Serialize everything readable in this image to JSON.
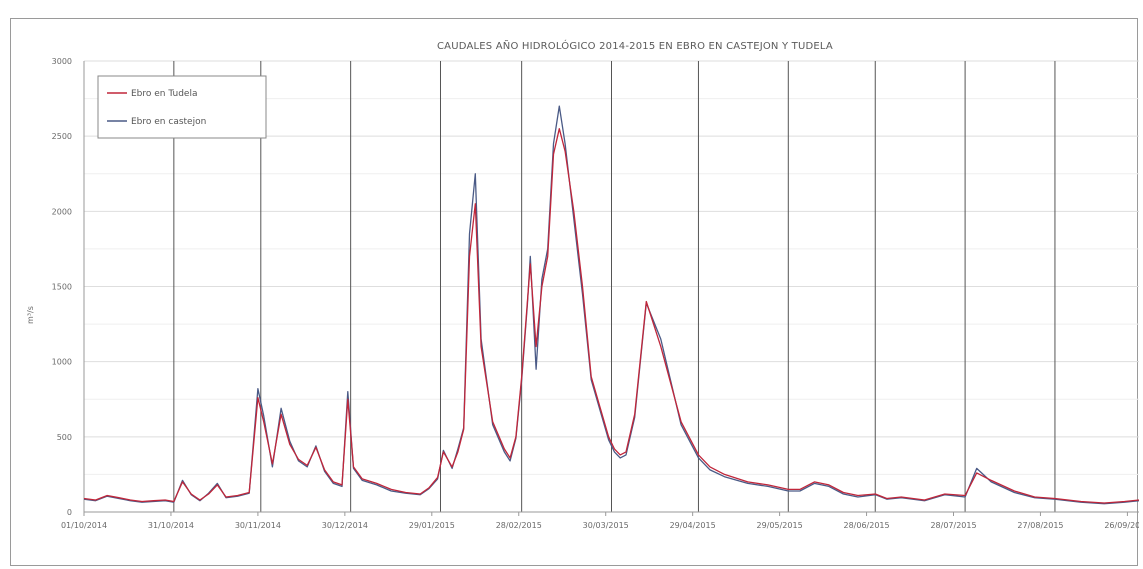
{
  "chart_data": {
    "type": "line",
    "title": "CAUDALES  AÑO HIDROLÓGICO 2014-2015 EN EBRO EN CASTEJON Y TUDELA",
    "ylabel": "m³/s",
    "xlabel": "",
    "ylim": [
      0,
      3000
    ],
    "yticks": [
      0,
      500,
      1000,
      1500,
      2000,
      2500,
      3000
    ],
    "xlim": [
      "01/10/2014",
      "30/09/2015"
    ],
    "xtick_labels": [
      "01/10/2014",
      "31/10/2014",
      "30/11/2014",
      "30/12/2014",
      "29/01/2015",
      "28/02/2015",
      "30/03/2015",
      "29/04/2015",
      "29/05/2015",
      "28/06/2015",
      "28/07/2015",
      "27/08/2015",
      "26/09/2015"
    ],
    "xtick_dates": [
      "2014-10-01",
      "2014-10-31",
      "2014-11-30",
      "2014-12-30",
      "2015-01-29",
      "2015-02-28",
      "2015-03-30",
      "2015-04-29",
      "2015-05-29",
      "2015-06-28",
      "2015-07-28",
      "2015-08-27",
      "2015-09-26"
    ],
    "vlines": [
      "2014-11-01",
      "2014-12-01",
      "2015-01-01",
      "2015-02-01",
      "2015-03-01",
      "2015-04-01",
      "2015-05-01",
      "2015-06-01",
      "2015-07-01",
      "2015-08-01",
      "2015-09-01"
    ],
    "grid": true,
    "legend": "top-left",
    "series": [
      {
        "name": "Ebro en Tudela",
        "color": "#c0263a",
        "x": [
          "2014-10-01",
          "2014-10-05",
          "2014-10-09",
          "2014-10-13",
          "2014-10-17",
          "2014-10-21",
          "2014-10-25",
          "2014-10-29",
          "2014-11-01",
          "2014-11-04",
          "2014-11-07",
          "2014-11-10",
          "2014-11-13",
          "2014-11-16",
          "2014-11-19",
          "2014-11-23",
          "2014-11-27",
          "2014-11-30",
          "2014-12-02",
          "2014-12-05",
          "2014-12-08",
          "2014-12-11",
          "2014-12-14",
          "2014-12-17",
          "2014-12-20",
          "2014-12-23",
          "2014-12-26",
          "2014-12-29",
          "2014-12-31",
          "2015-01-02",
          "2015-01-05",
          "2015-01-10",
          "2015-01-15",
          "2015-01-20",
          "2015-01-25",
          "2015-01-28",
          "2015-01-31",
          "2015-02-02",
          "2015-02-05",
          "2015-02-07",
          "2015-02-09",
          "2015-02-11",
          "2015-02-13",
          "2015-02-15",
          "2015-02-19",
          "2015-02-23",
          "2015-02-25",
          "2015-02-27",
          "2015-03-01",
          "2015-03-03",
          "2015-03-04",
          "2015-03-06",
          "2015-03-08",
          "2015-03-10",
          "2015-03-12",
          "2015-03-14",
          "2015-03-16",
          "2015-03-19",
          "2015-03-22",
          "2015-03-25",
          "2015-03-28",
          "2015-03-31",
          "2015-04-02",
          "2015-04-04",
          "2015-04-06",
          "2015-04-09",
          "2015-04-13",
          "2015-04-18",
          "2015-04-25",
          "2015-05-01",
          "2015-05-05",
          "2015-05-10",
          "2015-05-18",
          "2015-05-25",
          "2015-06-01",
          "2015-06-05",
          "2015-06-10",
          "2015-06-15",
          "2015-06-20",
          "2015-06-25",
          "2015-07-01",
          "2015-07-05",
          "2015-07-10",
          "2015-07-18",
          "2015-07-25",
          "2015-08-01",
          "2015-08-05",
          "2015-08-10",
          "2015-08-18",
          "2015-08-25",
          "2015-09-01",
          "2015-09-10",
          "2015-09-18",
          "2015-09-25",
          "2015-09-30"
        ],
        "y": [
          90,
          80,
          110,
          95,
          80,
          70,
          75,
          80,
          70,
          200,
          120,
          80,
          120,
          180,
          100,
          110,
          130,
          760,
          600,
          320,
          650,
          450,
          350,
          310,
          430,
          280,
          200,
          180,
          750,
          300,
          220,
          190,
          150,
          130,
          120,
          160,
          230,
          400,
          300,
          400,
          550,
          1700,
          2050,
          1100,
          600,
          420,
          360,
          500,
          900,
          1400,
          1650,
          1100,
          1500,
          1700,
          2380,
          2550,
          2400,
          2000,
          1500,
          900,
          700,
          500,
          420,
          380,
          400,
          650,
          1400,
          1100,
          600,
          380,
          300,
          250,
          200,
          180,
          150,
          150,
          200,
          180,
          130,
          110,
          120,
          90,
          100,
          80,
          120,
          110,
          260,
          210,
          140,
          100,
          90,
          70,
          60,
          70,
          80
        ]
      },
      {
        "name": "Ebro en castejon",
        "color": "#4a5a86",
        "x": [
          "2014-10-01",
          "2014-10-05",
          "2014-10-09",
          "2014-10-13",
          "2014-10-17",
          "2014-10-21",
          "2014-10-25",
          "2014-10-29",
          "2014-11-01",
          "2014-11-04",
          "2014-11-07",
          "2014-11-10",
          "2014-11-13",
          "2014-11-16",
          "2014-11-19",
          "2014-11-23",
          "2014-11-27",
          "2014-11-30",
          "2014-12-02",
          "2014-12-05",
          "2014-12-08",
          "2014-12-11",
          "2014-12-14",
          "2014-12-17",
          "2014-12-20",
          "2014-12-23",
          "2014-12-26",
          "2014-12-29",
          "2014-12-31",
          "2015-01-02",
          "2015-01-05",
          "2015-01-10",
          "2015-01-15",
          "2015-01-20",
          "2015-01-25",
          "2015-01-28",
          "2015-01-31",
          "2015-02-02",
          "2015-02-05",
          "2015-02-07",
          "2015-02-09",
          "2015-02-11",
          "2015-02-13",
          "2015-02-15",
          "2015-02-19",
          "2015-02-23",
          "2015-02-25",
          "2015-02-27",
          "2015-03-01",
          "2015-03-03",
          "2015-03-04",
          "2015-03-06",
          "2015-03-08",
          "2015-03-10",
          "2015-03-12",
          "2015-03-14",
          "2015-03-16",
          "2015-03-19",
          "2015-03-22",
          "2015-03-25",
          "2015-03-28",
          "2015-03-31",
          "2015-04-02",
          "2015-04-04",
          "2015-04-06",
          "2015-04-09",
          "2015-04-13",
          "2015-04-18",
          "2015-04-25",
          "2015-05-01",
          "2015-05-05",
          "2015-05-10",
          "2015-05-18",
          "2015-05-25",
          "2015-06-01",
          "2015-06-05",
          "2015-06-10",
          "2015-06-15",
          "2015-06-20",
          "2015-06-25",
          "2015-07-01",
          "2015-07-05",
          "2015-07-10",
          "2015-07-18",
          "2015-07-25",
          "2015-08-01",
          "2015-08-05",
          "2015-08-10",
          "2015-08-18",
          "2015-08-25",
          "2015-09-01",
          "2015-09-10",
          "2015-09-18",
          "2015-09-25",
          "2015-09-30"
        ],
        "y": [
          85,
          75,
          105,
          90,
          75,
          65,
          70,
          75,
          65,
          210,
          115,
          75,
          125,
          190,
          95,
          105,
          125,
          820,
          640,
          300,
          690,
          470,
          340,
          300,
          440,
          270,
          190,
          170,
          800,
          290,
          210,
          180,
          140,
          125,
          115,
          155,
          220,
          410,
          290,
          420,
          560,
          1850,
          2250,
          1150,
          580,
          400,
          340,
          490,
          880,
          1380,
          1700,
          950,
          1550,
          1750,
          2450,
          2700,
          2450,
          1950,
          1450,
          880,
          680,
          480,
          400,
          360,
          380,
          630,
          1390,
          1150,
          580,
          360,
          280,
          235,
          190,
          170,
          140,
          140,
          190,
          170,
          120,
          100,
          115,
          85,
          95,
          75,
          115,
          100,
          290,
          200,
          130,
          95,
          85,
          65,
          55,
          65,
          75
        ]
      }
    ]
  }
}
